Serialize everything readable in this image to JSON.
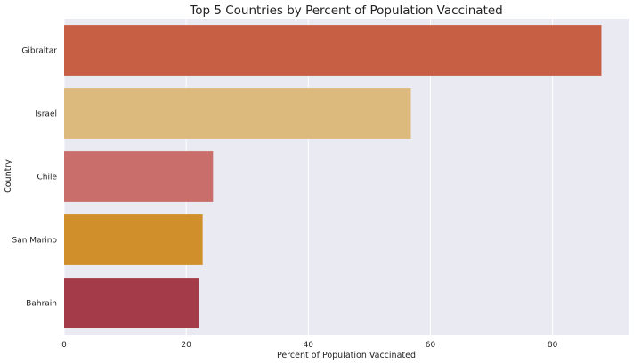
{
  "chart_data": {
    "type": "bar",
    "orientation": "horizontal",
    "title": "Top 5 Countries by Percent of Population Vaccinated",
    "xlabel": "Percent of Population Vaccinated",
    "ylabel": "Country",
    "categories": [
      "Gibraltar",
      "Israel",
      "Chile",
      "San Marino",
      "Bahrain"
    ],
    "values": [
      88.0,
      56.8,
      24.4,
      22.7,
      22.1
    ],
    "colors": [
      "#c75f45",
      "#dcb97c",
      "#c96e6b",
      "#d08f2b",
      "#a33c48"
    ],
    "xlim": [
      0,
      92.6
    ],
    "xticks": [
      0,
      20,
      40,
      60,
      80
    ],
    "grid": true,
    "legend": "none",
    "background": "#eaeaf2"
  }
}
